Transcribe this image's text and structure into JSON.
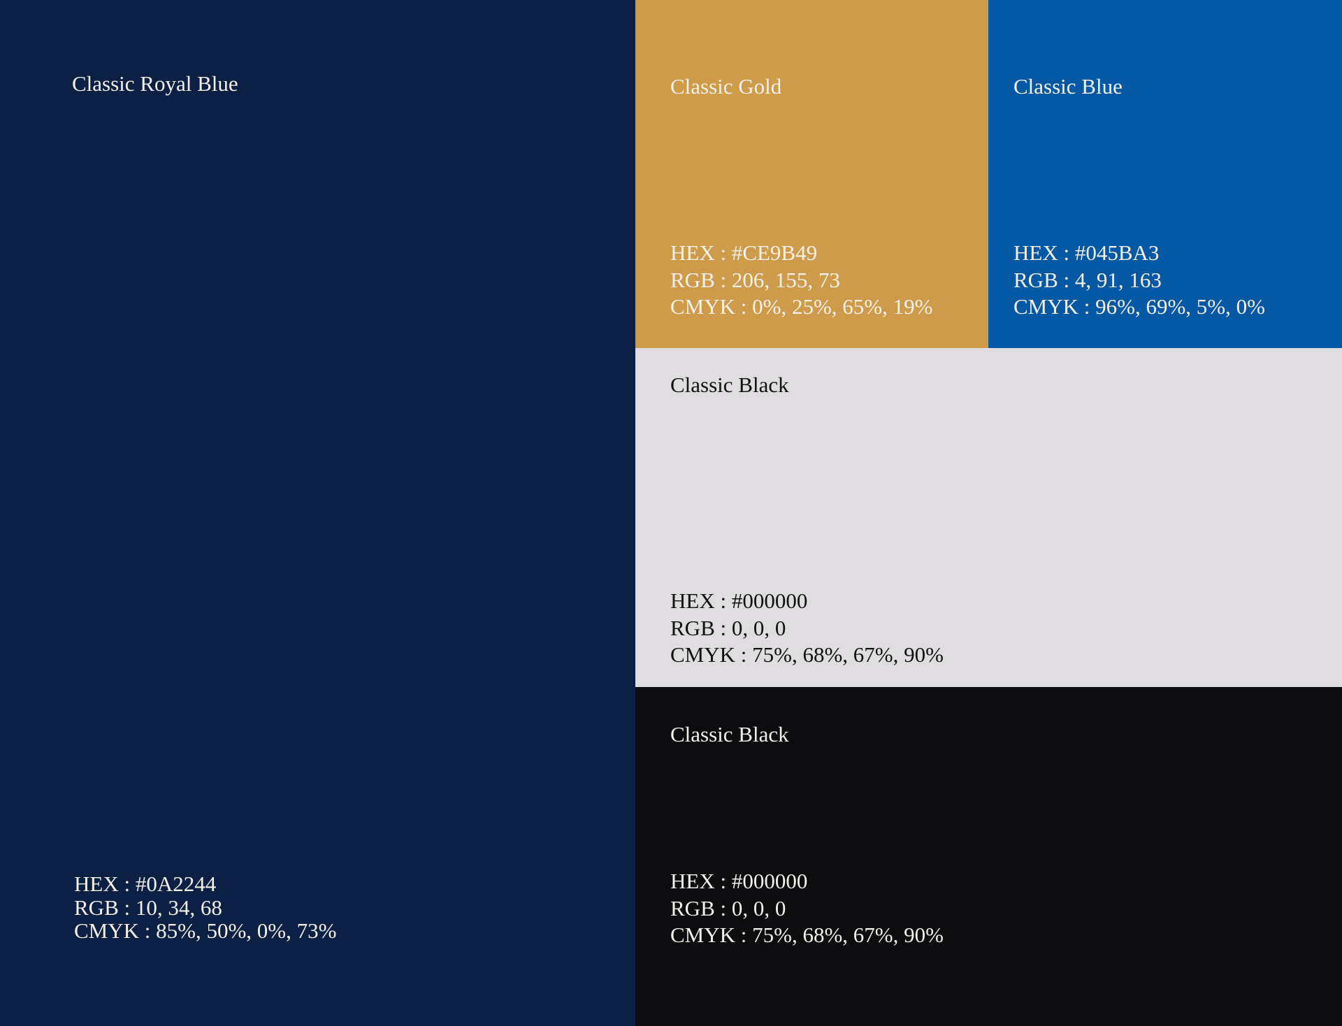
{
  "swatches": [
    {
      "name": "Classic Royal Blue",
      "hex": "HEX : #0A2244",
      "rgb": "RGB : 10, 34, 68",
      "cmyk": "CMYK : 85%, 50%, 0%, 73%"
    },
    {
      "name": "Classic Gold",
      "hex": "HEX : #CE9B49",
      "rgb": "RGB : 206, 155, 73",
      "cmyk": "CMYK : 0%, 25%, 65%, 19%"
    },
    {
      "name": "Classic Blue",
      "hex": "HEX : #045BA3",
      "rgb": "RGB : 4, 91, 163",
      "cmyk": "CMYK : 96%, 69%, 5%, 0%"
    },
    {
      "name": "Classic Black",
      "hex": "HEX : #000000",
      "rgb": "RGB : 0, 0, 0",
      "cmyk": "CMYK : 75%, 68%, 67%, 90%"
    },
    {
      "name": "Classic Black",
      "hex": "HEX : #000000",
      "rgb": "RGB : 0, 0, 0",
      "cmyk": "CMYK : 75%, 68%, 67%, 90%"
    }
  ]
}
